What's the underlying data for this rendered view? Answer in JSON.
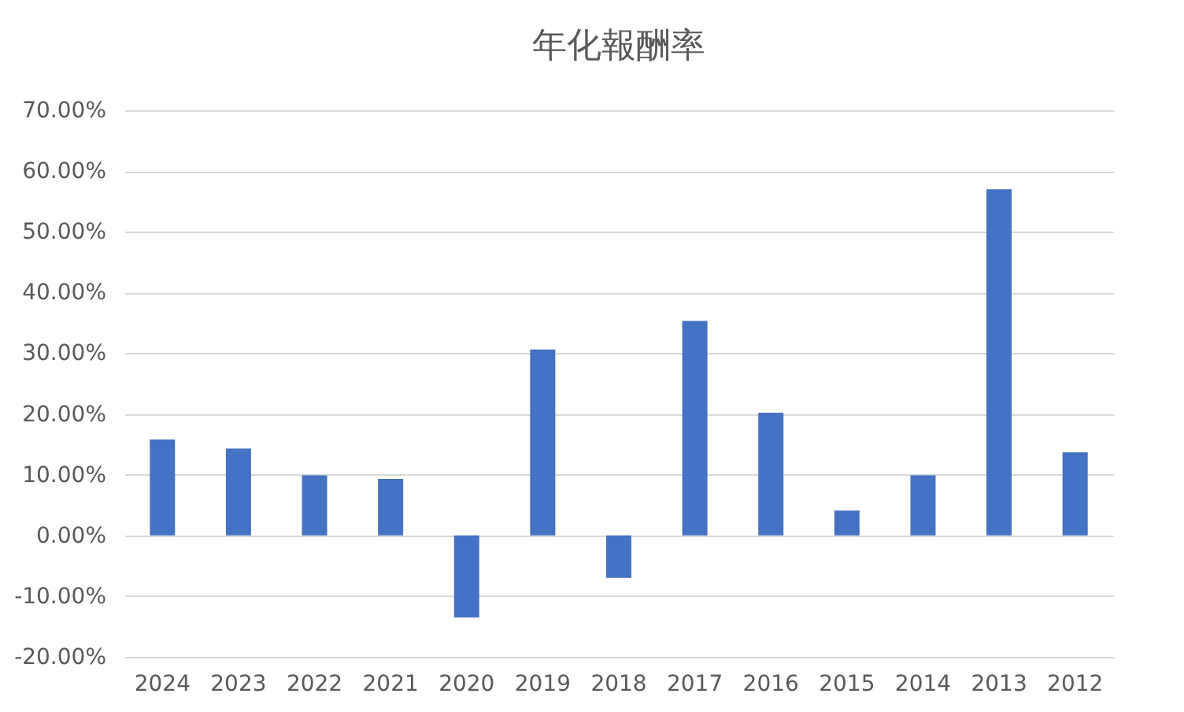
{
  "chart_data": {
    "type": "bar",
    "title": "年化報酬率",
    "categories": [
      "2024",
      "2023",
      "2022",
      "2021",
      "2020",
      "2019",
      "2018",
      "2017",
      "2016",
      "2015",
      "2014",
      "2013",
      "2012"
    ],
    "values": [
      15.8,
      14.3,
      9.9,
      9.3,
      -13.5,
      30.6,
      -7.0,
      35.3,
      20.2,
      4.1,
      9.9,
      57.0,
      13.7
    ],
    "color": "#4472c4",
    "ylim": [
      -20,
      70
    ],
    "yticks": [
      {
        "value": -20,
        "label": "-20.00%"
      },
      {
        "value": -10,
        "label": "-10.00%"
      },
      {
        "value": 0,
        "label": "0.00%"
      },
      {
        "value": 10,
        "label": "10.00%"
      },
      {
        "value": 20,
        "label": "20.00%"
      },
      {
        "value": 30,
        "label": "30.00%"
      },
      {
        "value": 40,
        "label": "40.00%"
      },
      {
        "value": 50,
        "label": "50.00%"
      },
      {
        "value": 60,
        "label": "60.00%"
      },
      {
        "value": 70,
        "label": "70.00%"
      }
    ],
    "grid": "y"
  }
}
